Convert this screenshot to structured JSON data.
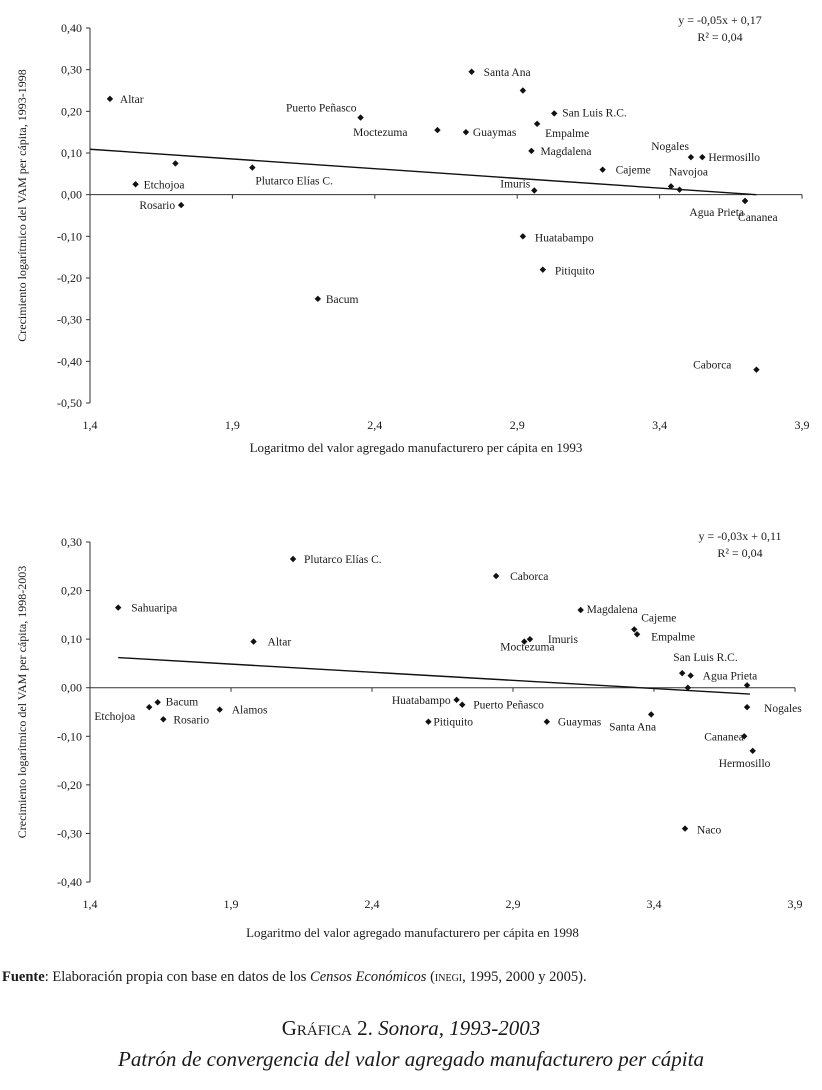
{
  "chart_data": [
    {
      "type": "scatter",
      "xlabel": "Logaritmo del valor agregado manufacturero per cápita en 1993",
      "ylabel": "Crecimiento logarítmico del VAM per cápita, 1993-1998",
      "xlim": [
        1.4,
        3.9
      ],
      "ylim": [
        -0.5,
        0.4
      ],
      "xticks": [
        1.4,
        1.9,
        2.4,
        2.9,
        3.4,
        3.9
      ],
      "xtick_labels": [
        "1,4",
        "1,9",
        "2,4",
        "2,9",
        "3,4",
        "3,9"
      ],
      "yticks": [
        0.4,
        0.3,
        0.2,
        0.1,
        0.0,
        -0.1,
        -0.2,
        -0.3,
        -0.4,
        -0.5
      ],
      "ytick_labels": [
        "0,40",
        "0,30",
        "0,20",
        "0,10",
        "0,00",
        "-0,10",
        "-0,20",
        "-0,30",
        "-0,40",
        "-0,50"
      ],
      "equation": "y = -0,05x + 0,17",
      "r2": "R² = 0,04",
      "trend": {
        "x1": 1.4,
        "y1": 0.109,
        "x2": 3.74,
        "y2": 0.0
      },
      "points": [
        {
          "name": "Altar",
          "x": 1.47,
          "y": 0.23
        },
        {
          "name": "Etchojoa",
          "x": 1.56,
          "y": 0.025
        },
        {
          "name": "Rosario",
          "x": 1.72,
          "y": -0.025
        },
        {
          "name": "",
          "x": 1.7,
          "y": 0.075
        },
        {
          "name": "Plutarco Elías C.",
          "x": 1.97,
          "y": 0.065
        },
        {
          "name": "Bacum",
          "x": 2.2,
          "y": -0.25
        },
        {
          "name": "Puerto Peñasco",
          "x": 2.35,
          "y": 0.185
        },
        {
          "name": "Moctezuma",
          "x": 2.62,
          "y": 0.155
        },
        {
          "name": "Guaymas",
          "x": 2.72,
          "y": 0.15
        },
        {
          "name": "Santa Ana",
          "x": 2.74,
          "y": 0.295
        },
        {
          "name": "",
          "x": 2.92,
          "y": 0.25
        },
        {
          "name": "San Luis R.C.",
          "x": 3.03,
          "y": 0.195
        },
        {
          "name": "Empalme",
          "x": 2.97,
          "y": 0.17
        },
        {
          "name": "Magdalena",
          "x": 2.95,
          "y": 0.105
        },
        {
          "name": "Imuris",
          "x": 2.96,
          "y": 0.01
        },
        {
          "name": "Cajeme",
          "x": 3.2,
          "y": 0.06
        },
        {
          "name": "Huatabampo",
          "x": 2.92,
          "y": -0.1
        },
        {
          "name": "Pitiquito",
          "x": 2.99,
          "y": -0.18
        },
        {
          "name": "Nogales",
          "x": 3.51,
          "y": 0.09
        },
        {
          "name": "Hermosillo",
          "x": 3.55,
          "y": 0.09
        },
        {
          "name": "Navojoa",
          "x": 3.44,
          "y": 0.02
        },
        {
          "name": "",
          "x": 3.47,
          "y": 0.012
        },
        {
          "name": "Agua Prieta",
          "x": 3.7,
          "y": -0.015
        },
        {
          "name": "Cananea",
          "x": 3.7,
          "y": -0.015
        },
        {
          "name": "Caborca",
          "x": 3.74,
          "y": -0.42
        }
      ]
    },
    {
      "type": "scatter",
      "xlabel": "Logaritmo del valor agregado manufacturero per cápita en 1998",
      "ylabel": "Crecimiento logarítmico del VAM per cápita, 1998-2003",
      "xlim": [
        1.4,
        3.9
      ],
      "ylim": [
        -0.4,
        0.3
      ],
      "xticks": [
        1.4,
        1.9,
        2.4,
        2.9,
        3.4,
        3.9
      ],
      "xtick_labels": [
        "1,4",
        "1,9",
        "2,4",
        "2,9",
        "3,4",
        "3,9"
      ],
      "yticks": [
        0.3,
        0.2,
        0.1,
        0.0,
        -0.1,
        -0.2,
        -0.3,
        -0.4
      ],
      "ytick_labels": [
        "0,30",
        "0,20",
        "0,10",
        "0,00",
        "-0,10",
        "-0,20",
        "-0,30",
        "-0,40"
      ],
      "equation": "y = -0,03x + 0,11",
      "r2": "R² = 0,04",
      "trend": {
        "x1": 1.5,
        "y1": 0.062,
        "x2": 3.74,
        "y2": -0.013
      },
      "points": [
        {
          "name": "Sahuaripa",
          "x": 1.5,
          "y": 0.165
        },
        {
          "name": "Etchojoa",
          "x": 1.61,
          "y": -0.04
        },
        {
          "name": "Bacum",
          "x": 1.64,
          "y": -0.03
        },
        {
          "name": "Rosario",
          "x": 1.66,
          "y": -0.065
        },
        {
          "name": "Alamos",
          "x": 1.86,
          "y": -0.045
        },
        {
          "name": "Altar",
          "x": 1.98,
          "y": 0.095
        },
        {
          "name": "Plutarco Elías C.",
          "x": 2.12,
          "y": 0.265
        },
        {
          "name": "Pitiquito",
          "x": 2.6,
          "y": -0.07
        },
        {
          "name": "Huatabampo",
          "x": 2.7,
          "y": -0.025
        },
        {
          "name": "Puerto Peñasco",
          "x": 2.72,
          "y": -0.035
        },
        {
          "name": "Caborca",
          "x": 2.84,
          "y": 0.23
        },
        {
          "name": "Moctezuma",
          "x": 2.94,
          "y": 0.095
        },
        {
          "name": "Imuris",
          "x": 2.96,
          "y": 0.1
        },
        {
          "name": "Guaymas",
          "x": 3.02,
          "y": -0.07
        },
        {
          "name": "Magdalena",
          "x": 3.14,
          "y": 0.16
        },
        {
          "name": "Cajeme",
          "x": 3.33,
          "y": 0.12
        },
        {
          "name": "Empalme",
          "x": 3.34,
          "y": 0.11
        },
        {
          "name": "Santa Ana",
          "x": 3.39,
          "y": -0.055
        },
        {
          "name": "San Luis R.C.",
          "x": 3.5,
          "y": 0.03
        },
        {
          "name": "Agua Prieta",
          "x": 3.53,
          "y": 0.025
        },
        {
          "name": "",
          "x": 3.52,
          "y": 0.0
        },
        {
          "name": "",
          "x": 3.73,
          "y": 0.005
        },
        {
          "name": "Naco",
          "x": 3.51,
          "y": -0.29
        },
        {
          "name": "Nogales",
          "x": 3.73,
          "y": -0.04
        },
        {
          "name": "Cananea",
          "x": 3.72,
          "y": -0.1
        },
        {
          "name": "Hermosillo",
          "x": 3.75,
          "y": -0.13
        }
      ]
    }
  ],
  "source": {
    "label": "Fuente",
    "text_before": ": Elaboración propia con base en datos de los ",
    "italic": "Censos Económicos",
    "paren_open": " (",
    "org": "INEGI",
    "text_after": ", 1995, 2000 y 2005)."
  },
  "caption": {
    "label": "Gráfica 2.",
    "title": "Sonora, 1993-2003",
    "subtitle": "Patrón de convergencia del valor agregado manufacturero per cápita"
  }
}
